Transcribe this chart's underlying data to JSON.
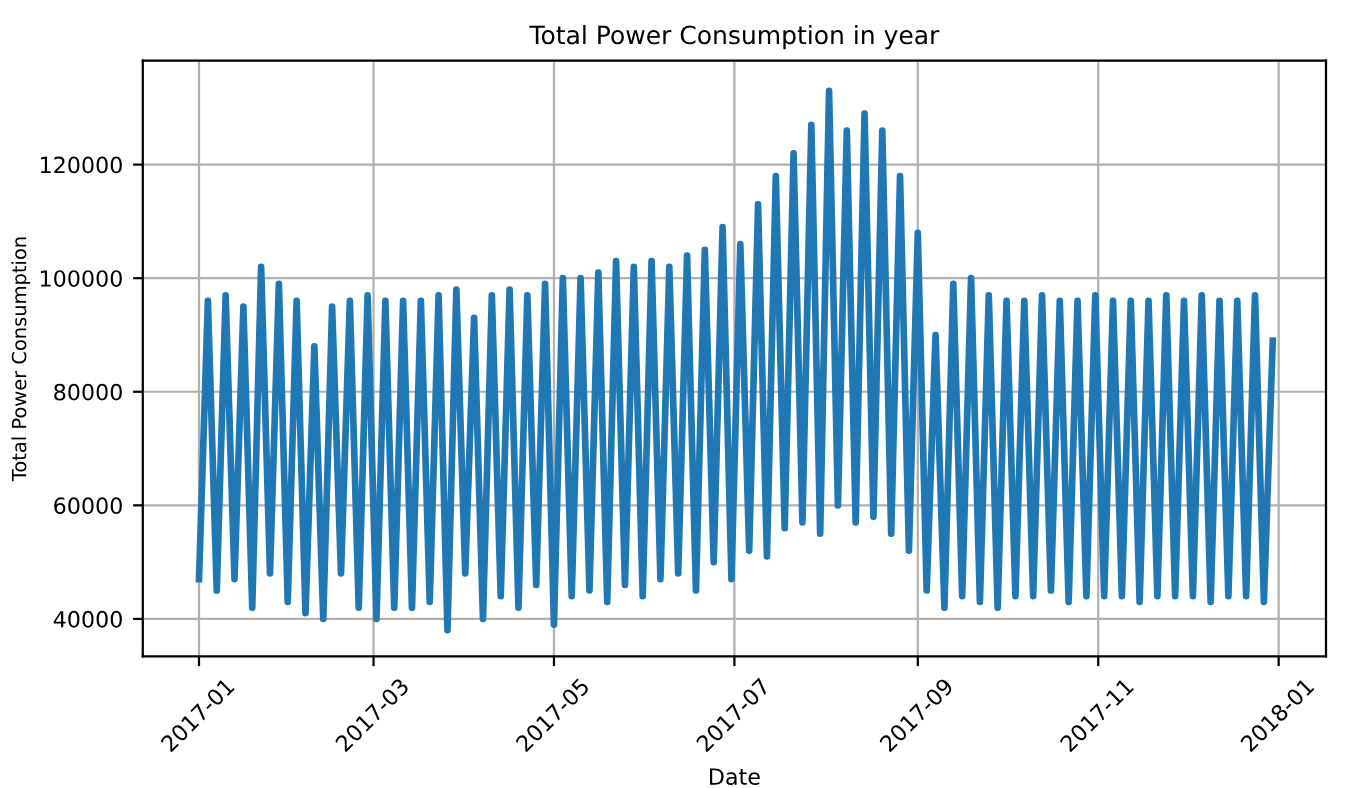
{
  "chart_data": {
    "type": "line",
    "title": "Total Power Consumption in year",
    "xlabel": "Date",
    "ylabel": "Total Power Consumption",
    "grid": true,
    "marker": "none",
    "line_style": "solid",
    "xlim": [
      "2016-12-13",
      "2018-01-17"
    ],
    "xticks": [
      "2017-01",
      "2017-03",
      "2017-05",
      "2017-07",
      "2017-09",
      "2017-11",
      "2018-01"
    ],
    "ylim": [
      33400,
      138300
    ],
    "yticks": [
      40000,
      60000,
      80000,
      100000,
      120000
    ],
    "series": [
      {
        "color": "#1f77b4",
        "x": [
          "2017-01-01",
          "2017-01-04",
          "2017-01-07",
          "2017-01-10",
          "2017-01-13",
          "2017-01-16",
          "2017-01-19",
          "2017-01-22",
          "2017-01-25",
          "2017-01-28",
          "2017-01-31",
          "2017-02-03",
          "2017-02-06",
          "2017-02-09",
          "2017-02-12",
          "2017-02-15",
          "2017-02-18",
          "2017-02-21",
          "2017-02-24",
          "2017-02-27",
          "2017-03-02",
          "2017-03-05",
          "2017-03-08",
          "2017-03-11",
          "2017-03-14",
          "2017-03-17",
          "2017-03-20",
          "2017-03-23",
          "2017-03-26",
          "2017-03-29",
          "2017-04-01",
          "2017-04-04",
          "2017-04-07",
          "2017-04-10",
          "2017-04-13",
          "2017-04-16",
          "2017-04-19",
          "2017-04-22",
          "2017-04-25",
          "2017-04-28",
          "2017-05-01",
          "2017-05-04",
          "2017-05-07",
          "2017-05-10",
          "2017-05-13",
          "2017-05-16",
          "2017-05-19",
          "2017-05-22",
          "2017-05-25",
          "2017-05-28",
          "2017-05-31",
          "2017-06-03",
          "2017-06-06",
          "2017-06-09",
          "2017-06-12",
          "2017-06-15",
          "2017-06-18",
          "2017-06-21",
          "2017-06-24",
          "2017-06-27",
          "2017-06-30",
          "2017-07-03",
          "2017-07-06",
          "2017-07-09",
          "2017-07-12",
          "2017-07-15",
          "2017-07-18",
          "2017-07-21",
          "2017-07-24",
          "2017-07-27",
          "2017-07-30",
          "2017-08-02",
          "2017-08-05",
          "2017-08-08",
          "2017-08-11",
          "2017-08-14",
          "2017-08-17",
          "2017-08-20",
          "2017-08-23",
          "2017-08-26",
          "2017-08-29",
          "2017-09-01",
          "2017-09-04",
          "2017-09-07",
          "2017-09-10",
          "2017-09-13",
          "2017-09-16",
          "2017-09-19",
          "2017-09-22",
          "2017-09-25",
          "2017-09-28",
          "2017-10-01",
          "2017-10-04",
          "2017-10-07",
          "2017-10-10",
          "2017-10-13",
          "2017-10-16",
          "2017-10-19",
          "2017-10-22",
          "2017-10-25",
          "2017-10-28",
          "2017-10-31",
          "2017-11-03",
          "2017-11-06",
          "2017-11-09",
          "2017-11-12",
          "2017-11-15",
          "2017-11-18",
          "2017-11-21",
          "2017-11-24",
          "2017-11-27",
          "2017-11-30",
          "2017-12-03",
          "2017-12-06",
          "2017-12-09",
          "2017-12-12",
          "2017-12-15",
          "2017-12-18",
          "2017-12-21",
          "2017-12-24",
          "2017-12-27",
          "2017-12-30"
        ],
        "values": [
          47000,
          96000,
          45000,
          97000,
          47000,
          95000,
          42000,
          102000,
          48000,
          99000,
          43000,
          96000,
          41000,
          88000,
          40000,
          95000,
          48000,
          96000,
          42000,
          97000,
          40000,
          96000,
          42000,
          96000,
          42000,
          96000,
          43000,
          97000,
          38000,
          98000,
          48000,
          93000,
          40000,
          97000,
          44000,
          98000,
          42000,
          97000,
          46000,
          99000,
          39000,
          100000,
          44000,
          100000,
          45000,
          101000,
          43000,
          103000,
          46000,
          102000,
          44000,
          103000,
          47000,
          102000,
          48000,
          104000,
          45000,
          105000,
          50000,
          109000,
          47000,
          106000,
          52000,
          113000,
          51000,
          118000,
          56000,
          122000,
          57000,
          127000,
          55000,
          133000,
          60000,
          126000,
          57000,
          129000,
          58000,
          126000,
          55000,
          118000,
          52000,
          108000,
          45000,
          90000,
          42000,
          99000,
          44000,
          100000,
          43000,
          97000,
          42000,
          96000,
          44000,
          96000,
          44000,
          97000,
          45000,
          96000,
          43000,
          96000,
          44000,
          97000,
          44000,
          96000,
          44000,
          96000,
          43000,
          96000,
          44000,
          97000,
          44000,
          96000,
          44000,
          97000,
          43000,
          96000,
          44000,
          96000,
          44000,
          97000,
          43000,
          89000
        ]
      }
    ]
  }
}
